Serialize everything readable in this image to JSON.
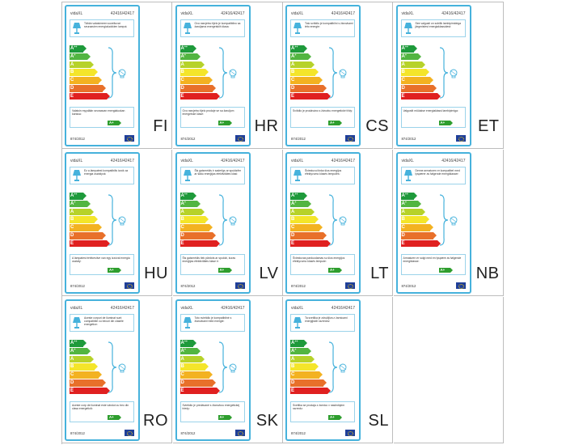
{
  "colors": {
    "frame": "#46b2dc",
    "class_colors": [
      "#1e9a3b",
      "#52b541",
      "#b6d22a",
      "#f4e52a",
      "#f3b221",
      "#e8702a",
      "#e02020"
    ],
    "badge_green": "#2e9e2e",
    "eu_blue": "#1f3f9a"
  },
  "icons": [
    "lamp-icon",
    "bulb-icon",
    "eu-flag-icon"
  ],
  "energy_classes": [
    "A++",
    "A+",
    "A",
    "B",
    "C",
    "D",
    "E"
  ],
  "selected_class": "A+",
  "labels": [
    {
      "lang": "FI",
      "brand": "vidaXL",
      "model": "42416/42417",
      "top": "Tähän valaisimeen soveltuvat seuraavien energialuokkien lamput.",
      "bottom": "Valaisin myydään seuraavan energialuokan kanssa:",
      "reg": "874/2012"
    },
    {
      "lang": "HR",
      "brand": "vidaXL",
      "model": "42416/42417",
      "top": "Ovo rasvjetno tijelo je kompatibilno sa žaruljama energetskih klasa:",
      "bottom": "Ovo rasvjetno tijelo prodaje se sa žaruljom energetske klase:",
      "reg": "874/2012"
    },
    {
      "lang": "CS",
      "brand": "vidaXL",
      "model": "42416/42417",
      "top": "Toto svítidlo je kompatibilní s žárovkami této energie:",
      "bottom": "Svítidlo je prodáváno s žárovku energetické třídy:",
      "reg": "874/2012"
    },
    {
      "lang": "ET",
      "brand": "vidaXL",
      "model": "42416/42417",
      "top": "See valgusti on sobilik lambipirnidega järgmistest energiaklassidest:",
      "bottom": "Valgustit müüakse energiaklassi lambipirniga:",
      "reg": "874/2012"
    },
    {
      "lang": "HU",
      "brand": "vidaXL",
      "model": "42416/42417",
      "top": "Ez a lámpatest kompatibilis izzók az energia osztályok:",
      "bottom": "A lámpatest értékesítve van egy izzóval energia osztály:",
      "reg": "874/2012"
    },
    {
      "lang": "LV",
      "brand": "vidaXL",
      "model": "42416/42417",
      "top": "Šis gaismeklis ir saderīgs ar spuldzēm ar šādu enerģijas efektivitātes klasi:",
      "bottom": "Šis gaismeklis tiek pārdots ar spuldzi, kuras enerģijas efektivitātes klase ir:",
      "reg": "874/2012"
    },
    {
      "lang": "LT",
      "brand": "vidaXL",
      "model": "42416/42417",
      "top": "Šviestuvui tinka šios energijos efektyvumo klasės lemputės:",
      "bottom": "Šviestuvas parduodamas su šios energijos efektyvumo klasės lempute:",
      "reg": "874/2012"
    },
    {
      "lang": "NB",
      "brand": "vidaXL",
      "model": "42416/42417",
      "top": "Denne armaturen er kompatibel med lyspærer av følgende energiklasser:",
      "bottom": "Armaturen er solgt med en lyspære av følgende energiklasse:",
      "reg": "874/2012"
    },
    {
      "lang": "RO",
      "brand": "vidaXL",
      "model": "42416/42417",
      "top": "Aceste corpuri de iluminat sunt compatibile cu becuri din clasele energetice:",
      "bottom": "Aceste corp de iluminat este vândut cu bec din clasa energetică:",
      "reg": "874/2012"
    },
    {
      "lang": "SK",
      "brand": "vidaXL",
      "model": "42416/42417",
      "top": "Toto svietidlo je kompatibilné s žiarovkami tried energie:",
      "bottom": "Svietidlo je predávané s žiarovkou energetickej triedy:",
      "reg": "874/2012"
    },
    {
      "lang": "SL",
      "brand": "vidaXL",
      "model": "42416/42417",
      "top": "Ta svetilka je združljiva z žarnicami energijskih razredov:",
      "bottom": "Svetilka se prodaja z žarnico v naslednjem razredu:",
      "reg": "874/2012"
    }
  ]
}
